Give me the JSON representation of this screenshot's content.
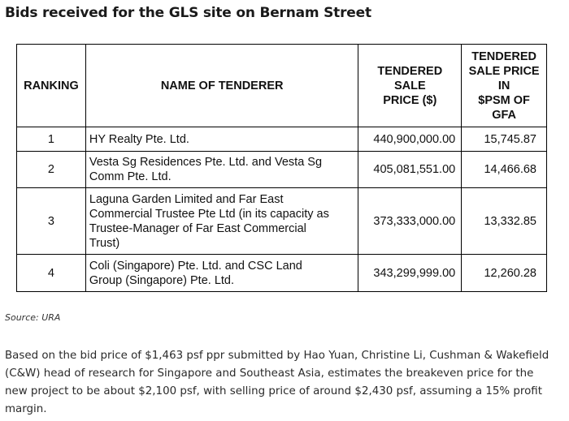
{
  "heading": "Bids received for the GLS site on Bernam Street",
  "table": {
    "headers": {
      "ranking": "RANKING",
      "name": "NAME OF TENDERER",
      "price": [
        "TENDERED",
        "SALE",
        "PRICE ($)"
      ],
      "psm": [
        "TENDERED",
        "SALE PRICE",
        "IN",
        "$PSM OF",
        "GFA"
      ]
    },
    "rows": [
      {
        "rank": "1",
        "name": [
          "HY Realty Pte. Ltd."
        ],
        "price": "440,900,000.00",
        "psm": "15,745.87"
      },
      {
        "rank": "2",
        "name": [
          "Vesta Sg Residences Pte. Ltd. and Vesta Sg",
          "Comm Pte. Ltd."
        ],
        "price": "405,081,551.00",
        "psm": "14,466.68"
      },
      {
        "rank": "3",
        "name": [
          "Laguna Garden Limited and Far East",
          "Commercial Trustee Pte Ltd (in its capacity as",
          "Trustee-Manager of Far East Commercial",
          "Trust)"
        ],
        "price": "373,333,000.00",
        "psm": "13,332.85"
      },
      {
        "rank": "4",
        "name": [
          "Coli (Singapore) Pte. Ltd. and CSC Land",
          "Group (Singapore) Pte. Ltd."
        ],
        "price": "343,299,999.00",
        "psm": "12,260.28"
      }
    ]
  },
  "source": "Source: URA",
  "paragraph": [
    "Based on the bid price of $1,463 psf ppr submitted by Hao Yuan, Christine Li, Cushman & Wakefield",
    "(C&W) head of research for Singapore and Southeast Asia, estimates the breakeven price for the",
    "new project to be about $2,100 psf, with selling price of around $2,430 psf, assuming a 15% profit",
    "margin."
  ]
}
